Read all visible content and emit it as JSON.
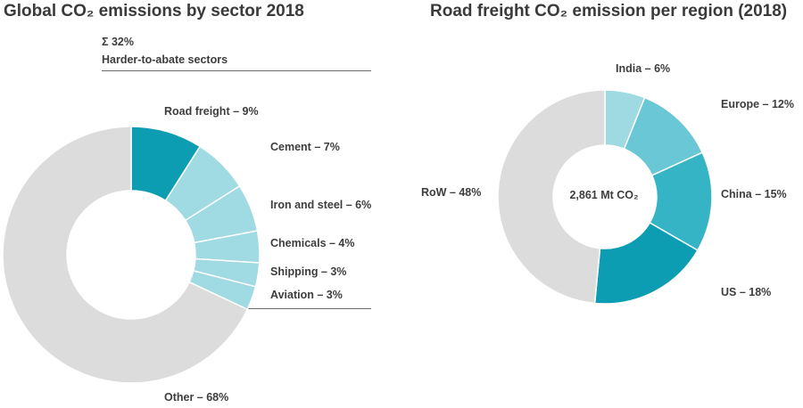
{
  "chart_data": [
    {
      "type": "pie",
      "title": "Global CO₂ emissions by sector 2018",
      "annotation_sum": "Σ 32%",
      "annotation_label": "Harder-to-abate sectors",
      "slices": [
        {
          "name": "Road freight",
          "value": 9,
          "label": "Road freight – 9%",
          "color": "#0c9db3"
        },
        {
          "name": "Cement",
          "value": 7,
          "label": "Cement – 7%",
          "color": "#a0dae3"
        },
        {
          "name": "Iron and steel",
          "value": 6,
          "label": "Iron and steel – 6%",
          "color": "#a0dae3"
        },
        {
          "name": "Chemicals",
          "value": 4,
          "label": "Chemicals – 4%",
          "color": "#a0dae3"
        },
        {
          "name": "Shipping",
          "value": 3,
          "label": "Shipping – 3%",
          "color": "#a0dae3"
        },
        {
          "name": "Aviation",
          "value": 3,
          "label": "Aviation – 3%",
          "color": "#a0dae3"
        },
        {
          "name": "Other",
          "value": 68,
          "label": "Other – 68%",
          "color": "#dcdcdc"
        }
      ]
    },
    {
      "type": "pie",
      "title": "Road freight CO₂ emission per region (2018)",
      "center_label": "2,861 Mt CO₂",
      "slices": [
        {
          "name": "India",
          "value": 6,
          "label": "India – 6%",
          "color": "#9fdae3"
        },
        {
          "name": "Europe",
          "value": 12,
          "label": "Europe – 12%",
          "color": "#6ac7d5"
        },
        {
          "name": "China",
          "value": 15,
          "label": "China – 15%",
          "color": "#35b4c6"
        },
        {
          "name": "US",
          "value": 18,
          "label": "US – 18%",
          "color": "#0c9db3"
        },
        {
          "name": "RoW",
          "value": 48,
          "label": "RoW – 48%",
          "color": "#dcdcdc"
        }
      ]
    }
  ]
}
